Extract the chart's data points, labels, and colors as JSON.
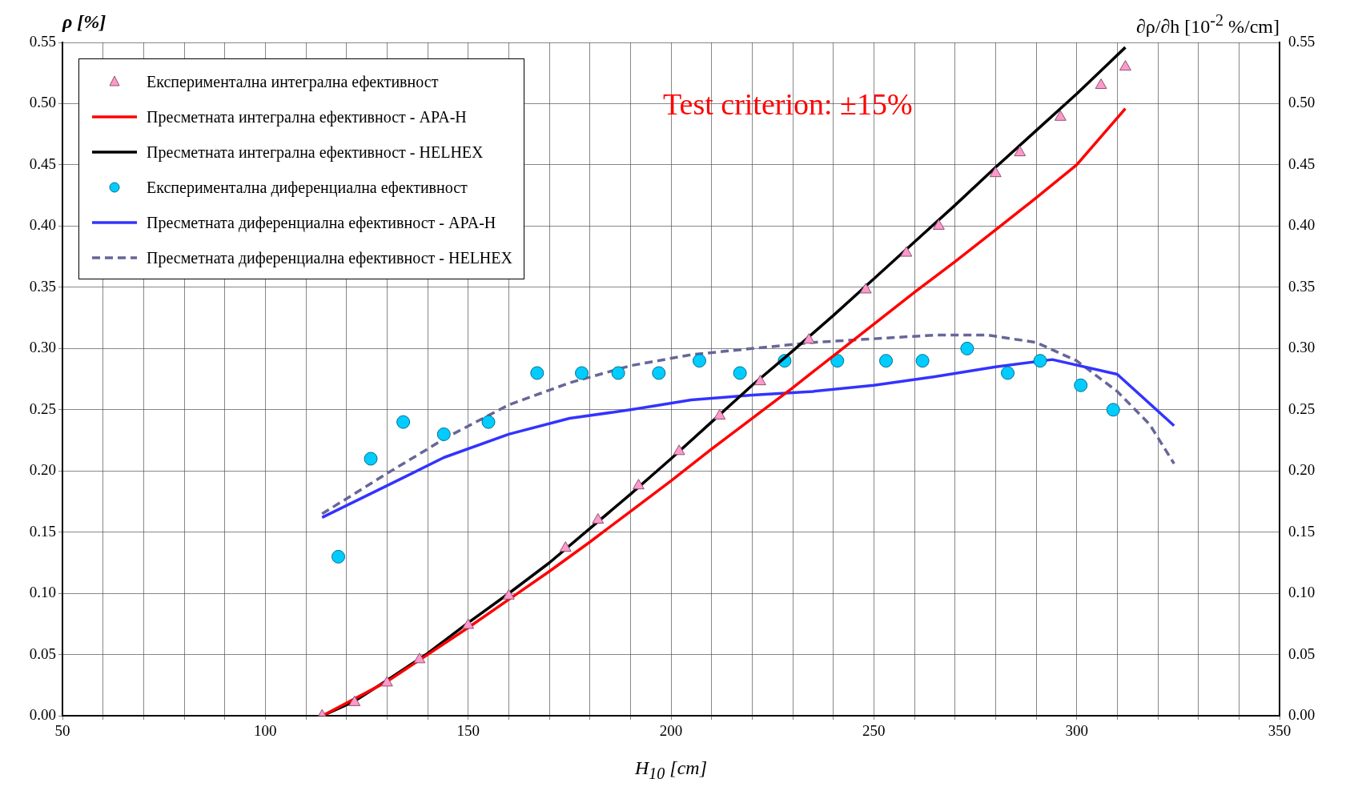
{
  "chart_data": {
    "type": "line",
    "xlabel": "H$_{10}$ [cm]",
    "ylabel": "ρ [%]",
    "y2label": "∂ρ/∂h [10$^{-2}$ %/cm]",
    "annotations": [
      "Test criterion: ±15%"
    ],
    "xlim": [
      50,
      350
    ],
    "xticks": [
      50,
      {
        "value": 60,
        "label": null
      },
      {
        "value": 70,
        "label": null
      },
      {
        "value": 80,
        "label": null
      },
      {
        "value": 90,
        "label": null
      },
      100,
      {
        "value": 110,
        "label": null
      },
      {
        "value": 120,
        "label": null
      },
      {
        "value": 130,
        "label": null
      },
      {
        "value": 140,
        "label": null
      },
      150,
      {
        "value": 160,
        "label": null
      },
      {
        "value": 170,
        "label": null
      },
      {
        "value": 180,
        "label": null
      },
      {
        "value": 190,
        "label": null
      },
      200,
      {
        "value": 210,
        "label": null
      },
      {
        "value": 220,
        "label": null
      },
      {
        "value": 230,
        "label": null
      },
      {
        "value": 240,
        "label": null
      },
      250,
      {
        "value": 260,
        "label": null
      },
      {
        "value": 270,
        "label": null
      },
      {
        "value": 280,
        "label": null
      },
      {
        "value": 290,
        "label": null
      },
      300,
      {
        "value": 310,
        "label": null
      },
      {
        "value": 320,
        "label": null
      },
      {
        "value": 330,
        "label": null
      },
      {
        "value": 340,
        "label": null
      },
      350
    ],
    "ylim": [
      0,
      0.55
    ],
    "yticks": [
      {
        "value": 0,
        "label": "0.00"
      },
      {
        "value": 0.05,
        "label": "0.05"
      },
      {
        "value": 0.1,
        "label": "0.10"
      },
      {
        "value": 0.15,
        "label": "0.15"
      },
      {
        "value": 0.2,
        "label": "0.20"
      },
      {
        "value": 0.25,
        "label": "0.25"
      },
      {
        "value": 0.3,
        "label": "0.30"
      },
      {
        "value": 0.35,
        "label": "0.35"
      },
      {
        "value": 0.4,
        "label": "0.40"
      },
      {
        "value": 0.45,
        "label": "0.45"
      },
      {
        "value": 0.5,
        "label": "0.50"
      },
      {
        "value": 0.55,
        "label": "0.55"
      }
    ],
    "y2lim": [
      0,
      0.55
    ],
    "y2ticks": [
      {
        "value": 0,
        "label": "0.00"
      },
      {
        "value": 0.05,
        "label": "0.05"
      },
      {
        "value": 0.1,
        "label": "0.10"
      },
      {
        "value": 0.15,
        "label": "0.15"
      },
      {
        "value": 0.2,
        "label": "0.20"
      },
      {
        "value": 0.25,
        "label": "0.25"
      },
      {
        "value": 0.3,
        "label": "0.30"
      },
      {
        "value": 0.35,
        "label": "0.35"
      },
      {
        "value": 0.4,
        "label": "0.40"
      },
      {
        "value": 0.45,
        "label": "0.45"
      },
      {
        "value": 0.5,
        "label": "0.50"
      },
      {
        "value": 0.55,
        "label": "0.55"
      }
    ],
    "grid": true,
    "legend": "top left",
    "series": [
      {
        "name": "Експериментална интегрална ефективност",
        "type": "scatter",
        "marker": "triangle",
        "color": "#ff99cc",
        "x": [
          114,
          122,
          130,
          138,
          150,
          160,
          174,
          182,
          192,
          202,
          212,
          222,
          234,
          248,
          258,
          266,
          280,
          286,
          296,
          306,
          312
        ],
        "values": [
          0,
          0.011,
          0.027,
          0.046,
          0.074,
          0.098,
          0.137,
          0.16,
          0.188,
          0.216,
          0.245,
          0.273,
          0.307,
          0.348,
          0.378,
          0.4,
          0.443,
          0.46,
          0.489,
          0.515,
          0.53
        ]
      },
      {
        "name": "Пресметната интегрална ефективност - APA-H",
        "type": "line",
        "marker": "none",
        "line_style": "solid",
        "color": "#ff0000",
        "x": [
          114,
          130,
          150,
          160,
          170,
          180,
          190,
          200,
          210,
          220,
          230,
          240,
          250,
          260,
          270,
          280,
          290,
          300,
          312
        ],
        "values": [
          0,
          0.028,
          0.072,
          0.095,
          0.118,
          0.142,
          0.167,
          0.192,
          0.218,
          0.243,
          0.268,
          0.294,
          0.32,
          0.346,
          0.371,
          0.397,
          0.423,
          0.45,
          0.496
        ]
      },
      {
        "name": "Пресметната интегрална ефективност - HELHEX",
        "type": "line",
        "marker": "none",
        "line_style": "solid",
        "color": "#000000",
        "x": [
          114,
          122,
          130,
          140,
          150,
          160,
          170,
          180,
          190,
          200,
          210,
          220,
          230,
          240,
          250,
          260,
          270,
          280,
          290,
          300,
          306,
          312
        ],
        "values": [
          0,
          0.012,
          0.029,
          0.051,
          0.076,
          0.1,
          0.125,
          0.153,
          0.181,
          0.21,
          0.24,
          0.27,
          0.298,
          0.327,
          0.357,
          0.387,
          0.417,
          0.448,
          0.478,
          0.508,
          0.527,
          0.546
        ]
      },
      {
        "name": "Експериментална диференциална ефективност",
        "type": "scatter",
        "marker": "circle",
        "color": "#00ccff",
        "x": [
          118,
          126,
          134,
          144,
          155,
          167,
          178,
          187,
          197,
          207,
          217,
          228,
          241,
          253,
          262,
          273,
          283,
          291,
          301,
          309
        ],
        "values": [
          0.13,
          0.21,
          0.24,
          0.23,
          0.24,
          0.28,
          0.28,
          0.28,
          0.28,
          0.29,
          0.28,
          0.29,
          0.29,
          0.29,
          0.29,
          0.3,
          0.28,
          0.29,
          0.27,
          0.25
        ]
      },
      {
        "name": "Пресметната диференциална ефективност - APA-H",
        "type": "line",
        "marker": "none",
        "line_style": "solid",
        "color": "#3333ff",
        "x": [
          114,
          130,
          144,
          160,
          175,
          190,
          205,
          220,
          235,
          250,
          265,
          280,
          294,
          310,
          324
        ],
        "values": [
          0.162,
          0.188,
          0.211,
          0.23,
          0.243,
          0.25,
          0.258,
          0.262,
          0.265,
          0.27,
          0.277,
          0.285,
          0.291,
          0.279,
          0.237
        ]
      },
      {
        "name": "Пресметната диференциална ефективност  - HELHEX",
        "type": "line",
        "marker": "none",
        "line_style": "dashed",
        "color": "#666699",
        "x": [
          114,
          130,
          145,
          160,
          175,
          190,
          205,
          220,
          235,
          250,
          265,
          278,
          290,
          300,
          310,
          318,
          324
        ],
        "values": [
          0.165,
          0.198,
          0.228,
          0.254,
          0.272,
          0.286,
          0.295,
          0.3,
          0.305,
          0.308,
          0.311,
          0.311,
          0.305,
          0.29,
          0.265,
          0.238,
          0.206
        ]
      }
    ]
  }
}
